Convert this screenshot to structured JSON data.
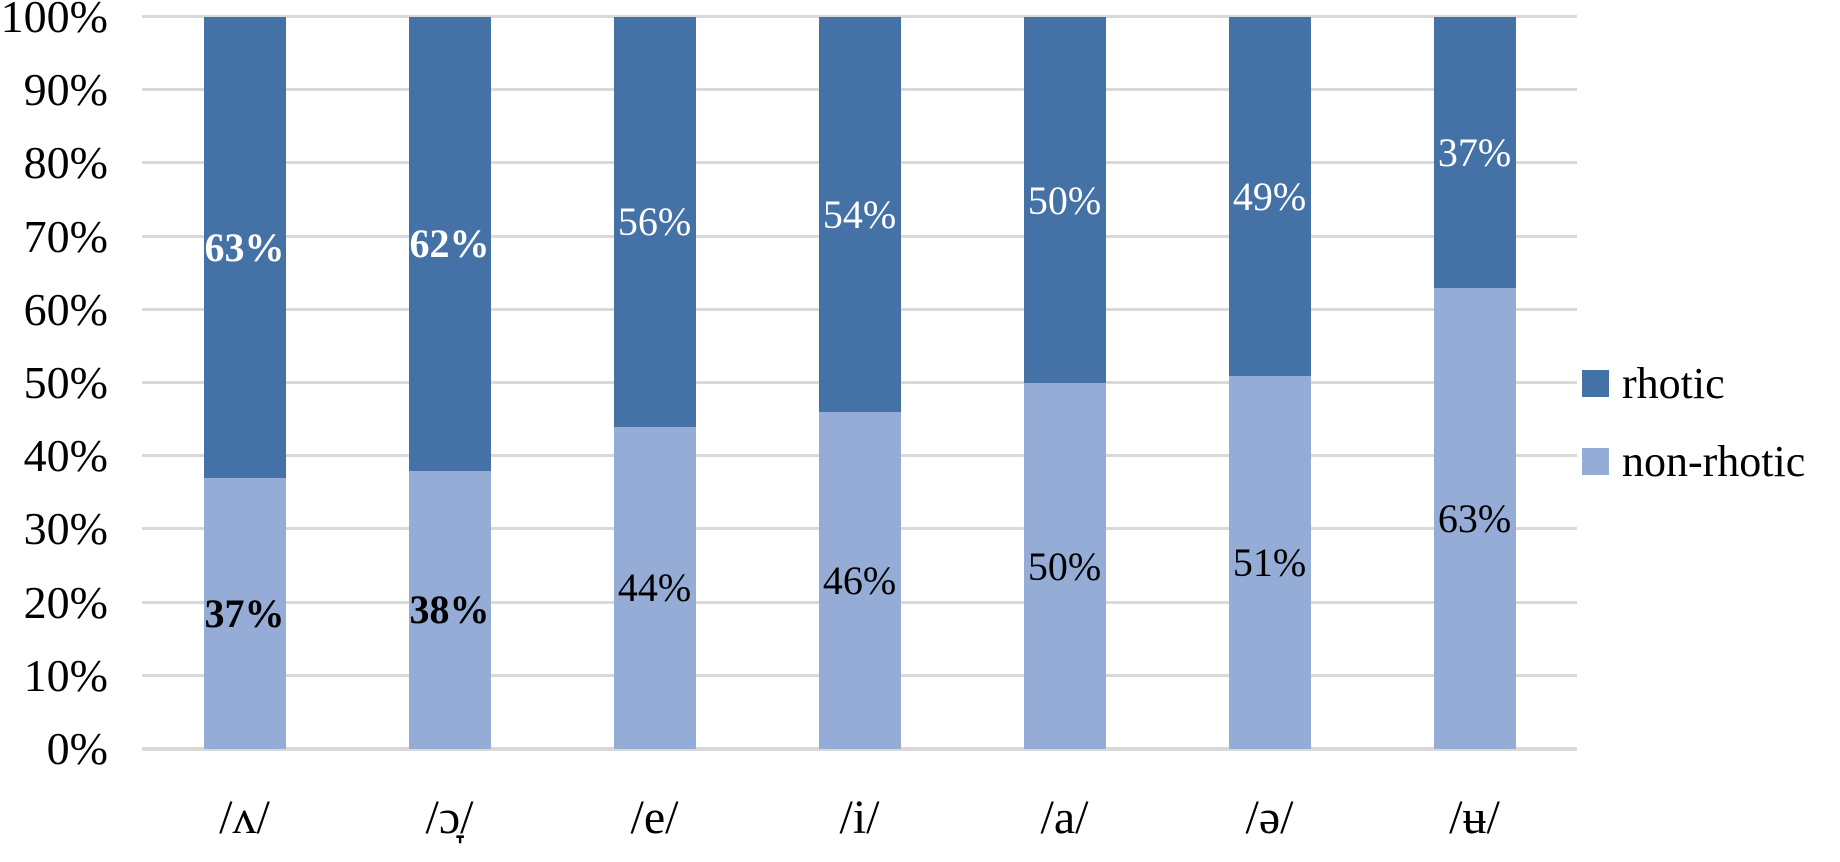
{
  "chart_data": {
    "type": "bar",
    "stacked": true,
    "orientation": "vertical",
    "title": "",
    "xlabel": "",
    "ylabel": "",
    "categories": [
      "/ʌ/",
      "/ɔ̞/",
      "/e/",
      "/i/",
      "/a/",
      "/ə/",
      "/ʉ/"
    ],
    "series": [
      {
        "name": "rhotic",
        "position": "top",
        "color": "#4471A6",
        "values": [
          63,
          62,
          56,
          54,
          50,
          49,
          37
        ],
        "value_labels": [
          "63%",
          "62%",
          "56%",
          "54%",
          "50%",
          "49%",
          "37%"
        ],
        "label_color": "#FFFFFF"
      },
      {
        "name": "non-rhotic",
        "position": "bottom",
        "color": "#95ADD6",
        "values": [
          37,
          38,
          44,
          46,
          50,
          51,
          63
        ],
        "value_labels": [
          "37%",
          "38%",
          "44%",
          "46%",
          "50%",
          "51%",
          "63%"
        ],
        "label_color": "#000000"
      }
    ],
    "value_label_bold_per_category": [
      true,
      true,
      false,
      false,
      false,
      false,
      false
    ],
    "y_ticks": [
      "100%",
      "90%",
      "80%",
      "70%",
      "60%",
      "50%",
      "40%",
      "30%",
      "20%",
      "10%",
      "0%"
    ],
    "ylim": [
      0,
      100
    ],
    "grid": true,
    "gridline_color": "#D9D9D9",
    "background_color": "#FFFFFF",
    "legend": {
      "position": "right",
      "entries": [
        {
          "label": "rhotic",
          "color": "#4471A6"
        },
        {
          "label": "non-rhotic",
          "color": "#95ADD6"
        }
      ]
    }
  }
}
